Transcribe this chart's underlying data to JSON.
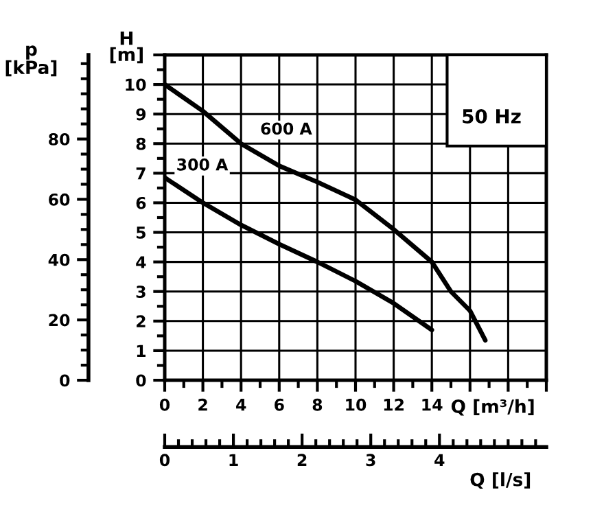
{
  "chart_data": {
    "type": "line",
    "xlabel": "Q [m³/h]",
    "ylabel": "H\n[m]",
    "y2label": "p\n[kPa]",
    "x2label": "Q [l/s]",
    "xlim": [
      0,
      20
    ],
    "xticks": [
      0,
      2,
      4,
      6,
      8,
      10,
      12,
      14,
      {
        "value": 16,
        "label": null
      },
      {
        "value": 18,
        "label": null
      },
      {
        "value": 20,
        "label": null
      }
    ],
    "ylim": [
      0,
      11
    ],
    "yticks": [
      0,
      1,
      2,
      3,
      4,
      5,
      6,
      7,
      8,
      9,
      10,
      {
        "value": 11,
        "label": null
      }
    ],
    "y2lim": [
      0,
      107.9
    ],
    "y2ticks": [
      0,
      20,
      40,
      60,
      80
    ],
    "x2lim": [
      0,
      5.556
    ],
    "x2ticks": [
      0,
      1,
      2,
      3,
      4
    ],
    "grid": true,
    "marker": "none",
    "line_style": "solid",
    "annotations": [
      "50 Hz"
    ],
    "series": [
      {
        "name": "600 A",
        "color": "#000000",
        "x": [
          0,
          2,
          4,
          6,
          8,
          10,
          12,
          14,
          15,
          16,
          16.8
        ],
        "values": [
          10,
          9.1,
          8.0,
          7.25,
          6.7,
          6.1,
          5.1,
          4.0,
          3.0,
          2.35,
          1.35
        ]
      },
      {
        "name": "300 A",
        "color": "#000000",
        "x": [
          0,
          2,
          4,
          6,
          8,
          10,
          12,
          14
        ],
        "values": [
          6.85,
          6.0,
          5.25,
          4.6,
          4.0,
          3.35,
          2.6,
          1.7
        ]
      }
    ]
  }
}
